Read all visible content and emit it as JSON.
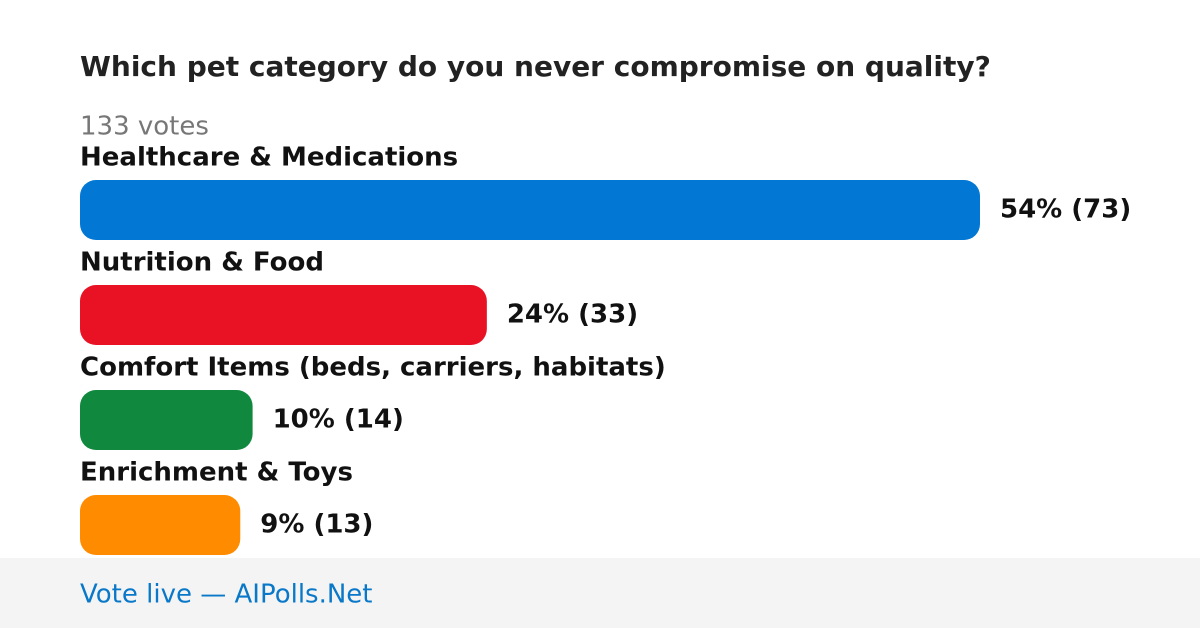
{
  "chart_data": {
    "type": "bar",
    "orientation": "horizontal",
    "title": "Which pet category do you never compromise on quality?",
    "subtitle": "133 votes",
    "categories": [
      "Healthcare & Medications",
      "Nutrition & Food",
      "Comfort Items (beds, carriers, habitats)",
      "Enrichment & Toys"
    ],
    "values": [
      73,
      33,
      14,
      13
    ],
    "value_labels": [
      "54% (73)",
      "24% (33)",
      "10% (14)",
      "9% (13)"
    ],
    "colors": [
      "#0277d4",
      "#e81224",
      "#10893e",
      "#ff8c00"
    ],
    "xlim": [
      0,
      73
    ],
    "footer": "Vote live — AIPolls.Net"
  }
}
